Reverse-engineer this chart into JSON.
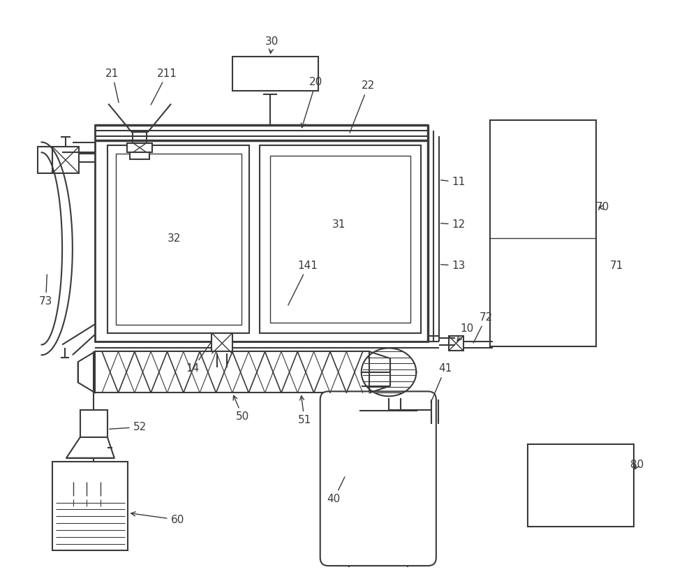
{
  "bg_color": "#ffffff",
  "lc": "#3a3a3a",
  "lw": 1.5,
  "lw_thick": 2.5,
  "lw_thin": 1.0,
  "fs": 11
}
